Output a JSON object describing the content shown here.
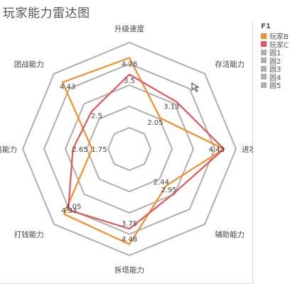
{
  "title": "玩家能力雷达图",
  "colors": {
    "grid": "#b3aeae",
    "playerB": "#f28e2b",
    "playerC": "#e15759",
    "text": "#444444"
  },
  "legend": {
    "title": "F1",
    "items": [
      {
        "label": "玩家B",
        "color": "#f28e2b"
      },
      {
        "label": "玩家C",
        "color": "#e15759"
      },
      {
        "label": "圆1",
        "color": "#b3aeae"
      },
      {
        "label": "圆2",
        "color": "#b3aeae"
      },
      {
        "label": "圆3",
        "color": "#b3aeae"
      },
      {
        "label": "圆4",
        "color": "#b3aeae"
      },
      {
        "label": "圆5",
        "color": "#b3aeae"
      }
    ]
  },
  "chart_data": {
    "type": "radar",
    "title": "玩家能力雷达图",
    "axes": [
      "升级速度",
      "存活能力",
      "进攻能力",
      "辅助能力",
      "拆塔能力",
      "打钱能力",
      "单挑能力",
      "团战能力"
    ],
    "rings": 5,
    "rmax": 5,
    "series": [
      {
        "name": "玩家B",
        "values": [
          4.28,
          2.05,
          4.43,
          2.44,
          4.48,
          4.33,
          1.75,
          4.43
        ],
        "labels": [
          "4.28",
          "2.05",
          "4.43",
          "2.44",
          "4.48",
          "4.33",
          "1.75",
          "4.43"
        ]
      },
      {
        "name": "玩家C",
        "values": [
          3.5,
          3.13,
          4.43,
          2.95,
          3.75,
          4.05,
          2.65,
          2.5
        ],
        "labels": [
          "3.5",
          "3.13",
          "4.43",
          "2.95",
          "3.75",
          "4.05",
          "2.65",
          "2.5"
        ]
      }
    ]
  }
}
